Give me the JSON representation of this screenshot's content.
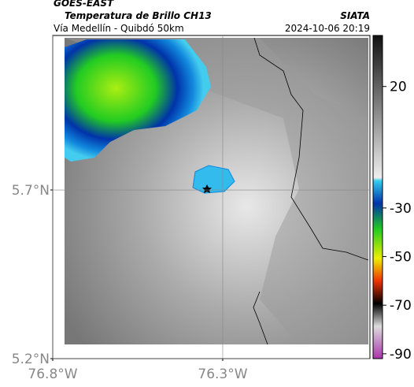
{
  "header": {
    "title": "GOES-EAST",
    "subtitle": "Temperatura de Brillo CH13",
    "description": "Vía Medellín - Quibdó 50km",
    "source": "SIATA",
    "datetime": "2024-10-06 20:19"
  },
  "map": {
    "latlim": [
      5.2,
      6.158
    ],
    "lonlim": [
      -76.8,
      -75.867
    ],
    "latticks": [
      {
        "value": 5.7,
        "label": "5.7°N"
      },
      {
        "value": 5.2,
        "label": "5.2°N"
      }
    ],
    "lonticks": [
      {
        "value": -76.8,
        "label": "76.8°W"
      },
      {
        "value": -76.3,
        "label": "76.3°W"
      }
    ],
    "grid": true
  },
  "colorbar": {
    "lim": [
      -92,
      41
    ],
    "ticks": [
      20,
      -30,
      -50,
      -70,
      -90
    ]
  }
}
